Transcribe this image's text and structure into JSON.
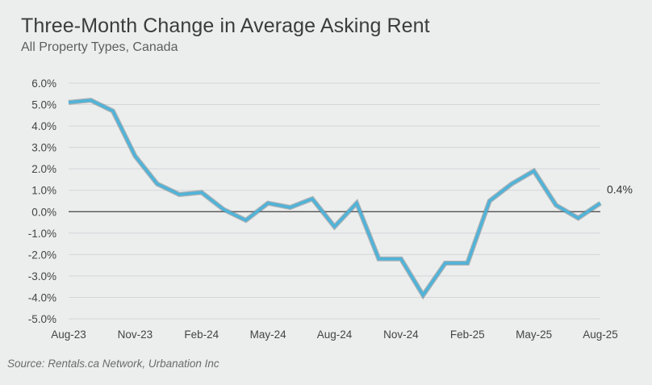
{
  "title": "Three-Month Change in Average Asking Rent",
  "subtitle": "All Property Types, Canada",
  "source": "Source: Rentals.ca Network, Urbanation Inc",
  "chart_data": {
    "type": "line",
    "title": "Three-Month Change in Average Asking Rent",
    "subtitle": "All Property Types, Canada",
    "xlabel": "",
    "ylabel": "",
    "ylim": [
      -5,
      6
    ],
    "yticks": [
      "6.0%",
      "5.0%",
      "4.0%",
      "3.0%",
      "2.0%",
      "1.0%",
      "0.0%",
      "-1.0%",
      "-2.0%",
      "-3.0%",
      "-4.0%",
      "-5.0%"
    ],
    "x": [
      "Aug-23",
      "Sep-23",
      "Oct-23",
      "Nov-23",
      "Dec-23",
      "Jan-24",
      "Feb-24",
      "Mar-24",
      "Apr-24",
      "May-24",
      "Jun-24",
      "Jul-24",
      "Aug-24",
      "Sep-24",
      "Oct-24",
      "Nov-24",
      "Dec-24",
      "Jan-25",
      "Feb-25",
      "Mar-25",
      "Apr-25",
      "May-25",
      "Jun-25",
      "Jul-25",
      "Aug-25"
    ],
    "xtick_labels": [
      "Aug-23",
      "Nov-23",
      "Feb-24",
      "May-24",
      "Aug-24",
      "Nov-24",
      "Feb-25",
      "May-25",
      "Aug-25"
    ],
    "series": [
      {
        "values": [
          5.1,
          5.2,
          4.7,
          2.6,
          1.3,
          0.8,
          0.9,
          0.1,
          -0.4,
          0.4,
          0.2,
          0.6,
          -0.7,
          0.4,
          -2.2,
          -2.2,
          -3.9,
          -2.4,
          -2.4,
          0.5,
          1.3,
          1.9,
          0.3,
          -0.3,
          0.4
        ],
        "color": "#4fb3d9"
      }
    ],
    "end_label": "0.4%",
    "grid": true,
    "zero_line": true
  }
}
